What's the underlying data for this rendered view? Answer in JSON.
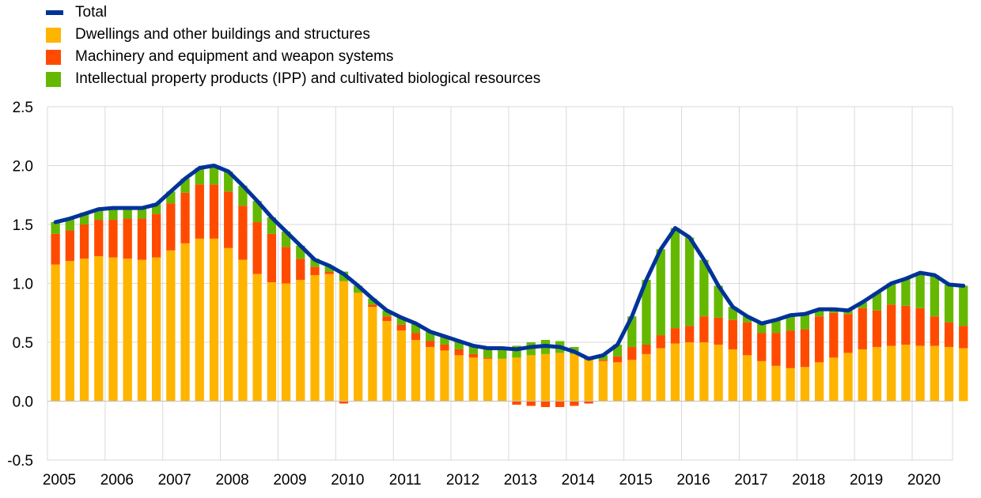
{
  "legend": [
    {
      "name": "Total",
      "kind": "line",
      "color": "#003399"
    },
    {
      "name": "Dwellings and other buildings and structures",
      "kind": "box",
      "color": "#FFB400"
    },
    {
      "name": "Machinery and equipment and weapon systems",
      "kind": "box",
      "color": "#FF4B00"
    },
    {
      "name": "Intellectual property products (IPP) and cultivated biological resources",
      "kind": "box",
      "color": "#65B800"
    }
  ],
  "chart_data": {
    "type": "bar",
    "stacked": true,
    "x_start": "2005Q1",
    "frequency": "quarterly",
    "xticks": [
      "2005",
      "2006",
      "2007",
      "2008",
      "2009",
      "2010",
      "2011",
      "2012",
      "2013",
      "2014",
      "2015",
      "2016",
      "2017",
      "2018",
      "2019",
      "2020"
    ],
    "yticks": [
      "2.5",
      "2.0",
      "1.5",
      "1.0",
      "0.5",
      "0.0",
      "-0.5"
    ],
    "ylim": [
      -0.5,
      2.5
    ],
    "grid": true,
    "legend_position": "top-left",
    "series": [
      {
        "name": "Dwellings and other buildings and structures",
        "color": "#FFB400",
        "values": [
          1.16,
          1.19,
          1.21,
          1.23,
          1.22,
          1.21,
          1.2,
          1.22,
          1.28,
          1.34,
          1.38,
          1.38,
          1.3,
          1.2,
          1.08,
          1.01,
          1.0,
          1.03,
          1.07,
          1.08,
          1.02,
          0.92,
          0.8,
          0.68,
          0.6,
          0.52,
          0.46,
          0.43,
          0.39,
          0.37,
          0.36,
          0.36,
          0.37,
          0.39,
          0.4,
          0.41,
          0.4,
          0.35,
          0.34,
          0.33,
          0.35,
          0.4,
          0.45,
          0.49,
          0.5,
          0.5,
          0.48,
          0.44,
          0.39,
          0.34,
          0.3,
          0.28,
          0.29,
          0.33,
          0.37,
          0.41,
          0.44,
          0.46,
          0.47,
          0.48,
          0.47,
          0.47,
          0.46,
          0.45
        ]
      },
      {
        "name": "Machinery and equipment and weapon systems",
        "color": "#FF4B00",
        "values": [
          0.26,
          0.26,
          0.29,
          0.31,
          0.32,
          0.34,
          0.35,
          0.37,
          0.4,
          0.43,
          0.46,
          0.46,
          0.48,
          0.46,
          0.44,
          0.41,
          0.31,
          0.18,
          0.07,
          0.02,
          -0.02,
          0.0,
          0.02,
          0.04,
          0.05,
          0.06,
          0.05,
          0.05,
          0.05,
          0.03,
          0.01,
          0.0,
          -0.03,
          -0.04,
          -0.05,
          -0.05,
          -0.04,
          -0.02,
          0.01,
          0.05,
          0.11,
          0.08,
          0.11,
          0.13,
          0.14,
          0.22,
          0.23,
          0.25,
          0.28,
          0.24,
          0.28,
          0.32,
          0.32,
          0.39,
          0.38,
          0.33,
          0.35,
          0.31,
          0.35,
          0.33,
          0.32,
          0.25,
          0.21,
          0.19
        ]
      },
      {
        "name": "Intellectual property products (IPP) and cultivated biological resources",
        "color": "#65B800",
        "values": [
          0.1,
          0.1,
          0.1,
          0.09,
          0.1,
          0.09,
          0.09,
          0.09,
          0.1,
          0.12,
          0.14,
          0.16,
          0.17,
          0.17,
          0.18,
          0.14,
          0.13,
          0.11,
          0.07,
          0.05,
          0.08,
          0.06,
          0.05,
          0.05,
          0.06,
          0.08,
          0.08,
          0.07,
          0.07,
          0.07,
          0.08,
          0.09,
          0.1,
          0.11,
          0.12,
          0.1,
          0.06,
          0.03,
          0.04,
          0.1,
          0.26,
          0.55,
          0.73,
          0.85,
          0.75,
          0.48,
          0.27,
          0.11,
          0.05,
          0.08,
          0.11,
          0.13,
          0.13,
          0.06,
          0.03,
          0.03,
          0.05,
          0.15,
          0.18,
          0.23,
          0.3,
          0.35,
          0.32,
          0.34
        ]
      },
      {
        "name": "Total",
        "color": "#003399",
        "kind": "line",
        "values": [
          1.52,
          1.55,
          1.59,
          1.63,
          1.64,
          1.64,
          1.64,
          1.67,
          1.78,
          1.89,
          1.98,
          2.0,
          1.95,
          1.83,
          1.7,
          1.56,
          1.44,
          1.32,
          1.2,
          1.15,
          1.08,
          0.98,
          0.87,
          0.77,
          0.71,
          0.66,
          0.59,
          0.55,
          0.51,
          0.47,
          0.45,
          0.45,
          0.44,
          0.46,
          0.47,
          0.46,
          0.42,
          0.36,
          0.39,
          0.48,
          0.72,
          1.03,
          1.29,
          1.47,
          1.39,
          1.2,
          0.98,
          0.8,
          0.72,
          0.66,
          0.69,
          0.73,
          0.74,
          0.78,
          0.78,
          0.77,
          0.84,
          0.92,
          1.0,
          1.04,
          1.09,
          1.07,
          0.99,
          0.98
        ]
      }
    ]
  }
}
